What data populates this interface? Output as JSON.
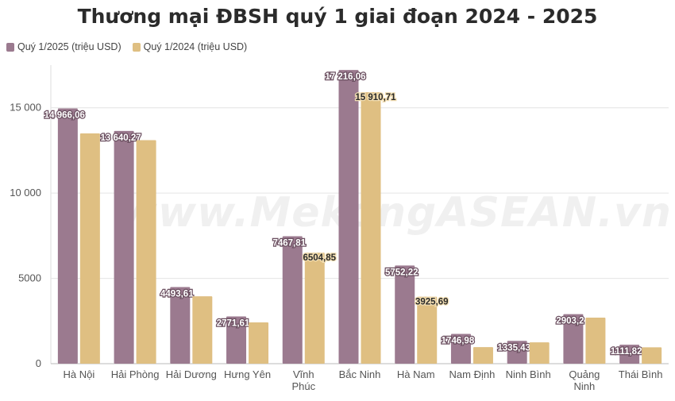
{
  "chart_data": {
    "type": "bar",
    "title": "Thương mại ĐBSH quý 1 giai đoạn 2024 - 2025",
    "xlabel": "",
    "ylabel": "",
    "ylim": [
      0,
      17500
    ],
    "yticks": [
      0,
      5000,
      10000,
      15000
    ],
    "ytick_labels": [
      "0",
      "5000",
      "10 000",
      "15 000"
    ],
    "grid": true,
    "legend_position": "top-left",
    "categories": [
      [
        "Hà Nội"
      ],
      [
        "Hải Phòng"
      ],
      [
        "Hải Dương"
      ],
      [
        "Hưng Yên"
      ],
      [
        "Vĩnh",
        "Phúc"
      ],
      [
        "Bắc Ninh"
      ],
      [
        "Hà Nam"
      ],
      [
        "Nam Định"
      ],
      [
        "Ninh Bình"
      ],
      [
        "Quảng",
        "Ninh"
      ],
      [
        "Thái Bình"
      ]
    ],
    "series": [
      {
        "name": "Quý 1/2025 (triệu USD)",
        "color": "#9b7a8f",
        "values": [
          14966.06,
          13640.27,
          4493.61,
          2771.61,
          7467.81,
          17216.06,
          5752.22,
          1746.98,
          1335.43,
          2903.2,
          1111.82
        ],
        "labels": [
          "14 966,06",
          "13 640,27",
          "4493,61",
          "2771,61",
          "7467,81",
          "17 216,06",
          "5752,22",
          "1746,98",
          "1335,43",
          "2903,2",
          "1111,82"
        ]
      },
      {
        "name": "Quý 1/2024 (triệu USD)",
        "color": "#dfbf82",
        "values": [
          13500,
          13100,
          3950,
          2420,
          6504.85,
          15910.71,
          3925.69,
          970,
          1250,
          2700,
          960
        ],
        "labels": [
          "",
          "",
          "",
          "",
          "6504,85",
          "15 910,71",
          "3925,69",
          "",
          "",
          "",
          ""
        ]
      }
    ]
  },
  "watermark": "www.MekongASEAN.vn"
}
